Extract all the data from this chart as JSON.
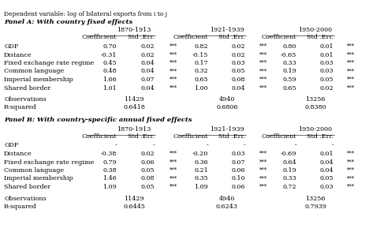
{
  "subtitle": "Dependent variable: log of bilateral exports from i to j",
  "panel_a_title": "Panel A: With country fixed effects",
  "panel_b_title": "Panel B: With country-specific annual fixed effects",
  "periods": [
    "1870-1913",
    "1921-1939",
    "1950-2000"
  ],
  "panel_a_rows": [
    [
      "GDP",
      "0.70",
      "0.02",
      "***",
      "0.82",
      "0.02",
      "***",
      "0.80",
      "0.01",
      "***"
    ],
    [
      "Distance",
      "-0.31",
      "0.02",
      "***",
      "-0.15",
      "0.02",
      "***",
      "-0.65",
      "0.01",
      "***"
    ],
    [
      "Fixed exchange rate regime",
      "0.45",
      "0.04",
      "***",
      "0.17",
      "0.03",
      "***",
      "0.33",
      "0.03",
      "***"
    ],
    [
      "Common language",
      "0.48",
      "0.04",
      "***",
      "0.32",
      "0.05",
      "***",
      "0.19",
      "0.03",
      "***"
    ],
    [
      "Imperial membership",
      "1.66",
      "0.07",
      "***",
      "0.65",
      "0.08",
      "***",
      "0.59",
      "0.05",
      "***"
    ],
    [
      "Shared border",
      "1.01",
      "0.04",
      "***",
      "1.00",
      "0.04",
      "***",
      "0.65",
      "0.02",
      "***"
    ]
  ],
  "panel_a_obs": [
    "Observations",
    "11429",
    "4940",
    "13256"
  ],
  "panel_a_rsq": [
    "R-squared",
    "0.6418",
    "0.6806",
    "0.8380"
  ],
  "panel_b_rows": [
    [
      "GDP",
      "-",
      "-",
      "",
      "-",
      "-",
      "",
      "-",
      "-",
      ""
    ],
    [
      "Distance",
      "-0.38",
      "0.02",
      "***",
      "-0.20",
      "0.03",
      "***",
      "-0.69",
      "0.01",
      "***"
    ],
    [
      "Fixed exchange rate regime",
      "0.79",
      "0.06",
      "***",
      "0.36",
      "0.07",
      "***",
      "0.64",
      "0.04",
      "***"
    ],
    [
      "Common language",
      "0.38",
      "0.05",
      "***",
      "0.21",
      "0.06",
      "***",
      "0.19",
      "0.04",
      "***"
    ],
    [
      "Imperial membership",
      "1.46",
      "0.08",
      "***",
      "0.35",
      "0.10",
      "***",
      "0.33",
      "0.05",
      "***"
    ],
    [
      "Shared border",
      "1.09",
      "0.05",
      "***",
      "1.09",
      "0.06",
      "***",
      "0.72",
      "0.03",
      "***"
    ]
  ],
  "panel_b_obs": [
    "Observations",
    "11429",
    "4940",
    "13256"
  ],
  "panel_b_rsq": [
    "R-squared",
    "0.6445",
    "0.6243",
    "0.7939"
  ],
  "bg_color": "#ffffff",
  "text_color": "#000000",
  "font_size": 5.8
}
